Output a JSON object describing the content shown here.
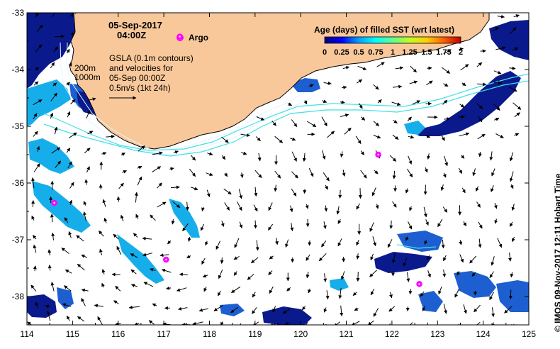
{
  "map": {
    "date": "05-Sep-2017",
    "time": "04:00Z",
    "argo_label": "Argo",
    "annotation_lines": [
      "GSLA (0.1m contours)",
      "and velocities for",
      "05-Sep 00:00Z",
      "0.5m/s (1kt 24h)"
    ],
    "isobath_labels": [
      "200m",
      "1000m"
    ],
    "colorbar": {
      "title": "Age (days) of filled SST (wrt latest)",
      "ticks": [
        "0",
        "0.25",
        "0.5",
        "0.75",
        "1",
        "1.25",
        "1.5",
        "1.75",
        "2"
      ],
      "colors": [
        "#000080",
        "#0000ff",
        "#00a0ff",
        "#00ffff",
        "#60ff90",
        "#c0ff20",
        "#ffd000",
        "#ff6000",
        "#c00000"
      ]
    },
    "credit": "© IMOS 09-Nov-2017 12:11 Hobart Time",
    "colors": {
      "land": "#f9c89a",
      "age_dark": "#0a1a8c",
      "age_mid": "#1d5fd0",
      "age_light": "#16aeea",
      "current_line": "#40e0e8",
      "argo": "#ff00ff"
    }
  },
  "axes": {
    "x_ticks": [
      "114",
      "115",
      "116",
      "117",
      "118",
      "119",
      "120",
      "121",
      "122",
      "123",
      "124",
      "125"
    ],
    "y_ticks": [
      "-33",
      "-34",
      "-35",
      "-36",
      "-37",
      "-38"
    ],
    "lon_range": [
      114,
      125
    ],
    "lat_range": [
      -38.5,
      -33
    ]
  },
  "argo_floats": [
    {
      "lon": 117.35,
      "lat": -33.42
    },
    {
      "lon": 121.7,
      "lat": -35.5
    },
    {
      "lon": 114.6,
      "lat": -36.35
    },
    {
      "lon": 117.05,
      "lat": -37.35
    },
    {
      "lon": 122.6,
      "lat": -37.78
    }
  ]
}
